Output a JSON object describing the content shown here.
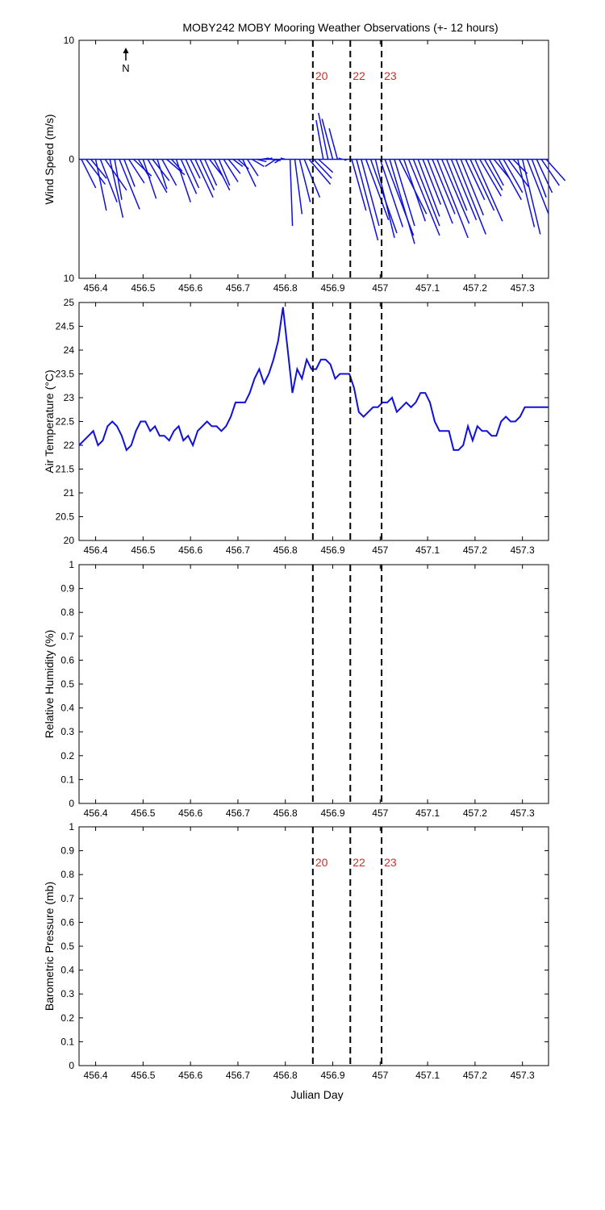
{
  "title": "MOBY242 MOBY Mooring Weather Observations (+- 12 hours)",
  "north_label": "N",
  "xlabel": "Julian Day",
  "events": [
    {
      "x": 456.858,
      "label": "20"
    },
    {
      "x": 456.937,
      "label": "22"
    },
    {
      "x": 457.003,
      "label": "23"
    }
  ],
  "chart_data": [
    {
      "type": "line",
      "name": "wind",
      "ylabel": "Wind Speed (m/s)",
      "xlim": [
        456.365,
        457.355
      ],
      "ylim": [
        -10,
        10
      ],
      "yticks": [
        10,
        0,
        10
      ],
      "yticks_values": [
        10,
        0,
        -10
      ],
      "xticks": [
        456.4,
        456.5,
        456.6,
        456.7,
        456.8,
        456.9,
        457,
        457.1,
        457.2,
        457.3
      ],
      "show_event_labels": true,
      "x": [
        456.37,
        456.38,
        456.39,
        456.4,
        456.41,
        456.42,
        456.43,
        456.44,
        456.45,
        456.46,
        456.47,
        456.48,
        456.49,
        456.5,
        456.51,
        456.52,
        456.53,
        456.54,
        456.55,
        456.56,
        456.57,
        456.58,
        456.59,
        456.6,
        456.61,
        456.62,
        456.63,
        456.64,
        456.65,
        456.66,
        456.67,
        456.68,
        456.69,
        456.7,
        456.71,
        456.72,
        456.73,
        456.74,
        456.75,
        456.76,
        456.77,
        456.78,
        456.79,
        456.8,
        456.81,
        456.82,
        456.83,
        456.84,
        456.85,
        456.86,
        456.87,
        456.88,
        456.89,
        456.9,
        456.91,
        456.92,
        456.93,
        456.94,
        456.95,
        456.96,
        456.97,
        456.98,
        456.99,
        457.0,
        457.01,
        457.02,
        457.03,
        457.04,
        457.05,
        457.06,
        457.07,
        457.08,
        457.09,
        457.1,
        457.11,
        457.12,
        457.13,
        457.14,
        457.15,
        457.16,
        457.17,
        457.18,
        457.19,
        457.2,
        457.21,
        457.22,
        457.23,
        457.24,
        457.25,
        457.26,
        457.27,
        457.28,
        457.29,
        457.3,
        457.31,
        457.32,
        457.33,
        457.34,
        457.35
      ],
      "u": [
        1.2,
        1.6,
        1.3,
        0.9,
        1.4,
        1.8,
        1.1,
        0.6,
        1.7,
        0.9,
        1.3,
        1.5,
        1.0,
        1.1,
        1.6,
        1.4,
        0.8,
        1.2,
        1.5,
        0.9,
        1.2,
        1.3,
        1.1,
        0.8,
        1.5,
        1.2,
        1.0,
        1.1,
        1.3,
        0.9,
        1.2,
        1.0,
        0.8,
        0.9,
        1.1,
        0.9,
        1.0,
        0.8,
        0.6,
        0.5,
        0.8,
        -0.9,
        -0.5,
        -0.4,
        0.2,
        0.6,
        0.9,
        1.3,
        1.8,
        1.5,
        1.2,
        -0.6,
        -0.8,
        -0.9,
        -0.7,
        -0.3,
        -0.2,
        1.2,
        1.8,
        1.5,
        1.9,
        2.2,
        1.6,
        1.9,
        2.4,
        2.1,
        1.7,
        2.3,
        1.8,
        2.6,
        2.2,
        1.8,
        1.5,
        2.1,
        1.9,
        2.6,
        2.3,
        1.7,
        2.1,
        2.5,
        1.9,
        1.6,
        2.0,
        2.3,
        1.8,
        1.5,
        1.2,
        1.3,
        1.9,
        1.6,
        1.7,
        1.2,
        1.4,
        1.5,
        1.8,
        1.2,
        1.3,
        1.5,
        1.6
      ],
      "v": [
        -2.4,
        -2.1,
        -1.6,
        -4.3,
        -3.6,
        -2.6,
        -4.9,
        -3.4,
        -4.2,
        -2.3,
        -2.0,
        -1.4,
        -1.6,
        -3.3,
        -2.8,
        -1.8,
        -2.5,
        -2.2,
        -1.3,
        -1.0,
        -3.6,
        -2.9,
        -2.4,
        -1.6,
        -3.2,
        -2.6,
        -2.2,
        -1.4,
        -2.6,
        -2.2,
        -1.9,
        -1.2,
        -0.6,
        -0.8,
        -2.3,
        -1.4,
        -0.6,
        -0.2,
        0.1,
        0.1,
        -0.1,
        -0.6,
        -0.3,
        0.1,
        -5.6,
        -4.6,
        -3.6,
        -3.2,
        -2.1,
        -1.6,
        -1.1,
        3.3,
        3.9,
        3.4,
        2.6,
        0.1,
        -0.1,
        -4.3,
        -6.8,
        -5.6,
        -5.1,
        -6.2,
        -6.6,
        -5.7,
        -6.4,
        -7.1,
        -5.6,
        -4.6,
        -5.2,
        -6.4,
        -5.6,
        -4.8,
        -3.8,
        -5.4,
        -4.6,
        -6.6,
        -5.4,
        -4.3,
        -5.1,
        -6.3,
        -4.7,
        -3.4,
        -4.3,
        -5.2,
        -3.1,
        -2.6,
        -2.2,
        -1.6,
        -3.4,
        -2.8,
        -2.3,
        -1.2,
        -5.7,
        -6.3,
        -4.6,
        -3.2,
        -2.8,
        -2.2,
        -1.8
      ]
    },
    {
      "type": "line",
      "name": "air-temperature",
      "ylabel": "Air Temperature (°C)",
      "xlim": [
        456.365,
        457.355
      ],
      "ylim": [
        20,
        25
      ],
      "yticks": [
        20,
        20.5,
        21,
        21.5,
        22,
        22.5,
        23,
        23.5,
        24,
        24.5,
        25
      ],
      "xticks": [
        456.4,
        456.5,
        456.6,
        456.7,
        456.8,
        456.9,
        457,
        457.1,
        457.2,
        457.3
      ],
      "show_event_labels": false,
      "x": [
        456.365,
        456.375,
        456.385,
        456.395,
        456.405,
        456.415,
        456.425,
        456.435,
        456.445,
        456.455,
        456.465,
        456.475,
        456.485,
        456.495,
        456.505,
        456.515,
        456.525,
        456.535,
        456.545,
        456.555,
        456.565,
        456.575,
        456.585,
        456.595,
        456.605,
        456.615,
        456.625,
        456.635,
        456.645,
        456.655,
        456.665,
        456.675,
        456.685,
        456.695,
        456.705,
        456.715,
        456.725,
        456.735,
        456.745,
        456.755,
        456.765,
        456.775,
        456.785,
        456.795,
        456.805,
        456.815,
        456.825,
        456.835,
        456.845,
        456.855,
        456.865,
        456.875,
        456.885,
        456.895,
        456.905,
        456.915,
        456.925,
        456.935,
        456.945,
        456.955,
        456.965,
        456.975,
        456.985,
        456.995,
        457.005,
        457.015,
        457.025,
        457.035,
        457.045,
        457.055,
        457.065,
        457.075,
        457.085,
        457.095,
        457.105,
        457.115,
        457.125,
        457.135,
        457.145,
        457.155,
        457.165,
        457.175,
        457.185,
        457.195,
        457.205,
        457.215,
        457.225,
        457.235,
        457.245,
        457.255,
        457.265,
        457.275,
        457.285,
        457.295,
        457.305,
        457.315,
        457.325,
        457.335,
        457.345,
        457.355
      ],
      "y": [
        22.0,
        22.1,
        22.2,
        22.3,
        22.0,
        22.1,
        22.4,
        22.5,
        22.4,
        22.2,
        21.9,
        22.0,
        22.3,
        22.5,
        22.5,
        22.3,
        22.4,
        22.2,
        22.2,
        22.1,
        22.3,
        22.4,
        22.1,
        22.2,
        22.0,
        22.3,
        22.4,
        22.5,
        22.4,
        22.4,
        22.3,
        22.4,
        22.6,
        22.9,
        22.9,
        22.9,
        23.1,
        23.4,
        23.6,
        23.3,
        23.5,
        23.8,
        24.2,
        24.9,
        24.0,
        23.1,
        23.6,
        23.4,
        23.8,
        23.6,
        23.6,
        23.8,
        23.8,
        23.7,
        23.4,
        23.5,
        23.5,
        23.5,
        23.2,
        22.7,
        22.6,
        22.7,
        22.8,
        22.8,
        22.9,
        22.9,
        23.0,
        22.7,
        22.8,
        22.9,
        22.8,
        22.9,
        23.1,
        23.1,
        22.9,
        22.5,
        22.3,
        22.3,
        22.3,
        21.9,
        21.9,
        22.0,
        22.4,
        22.1,
        22.4,
        22.3,
        22.3,
        22.2,
        22.2,
        22.5,
        22.6,
        22.5,
        22.5,
        22.6,
        22.8,
        22.8,
        22.8,
        22.8,
        22.8,
        22.8
      ]
    },
    {
      "type": "line",
      "name": "relative-humidity",
      "ylabel": "Relative Humidity (%)",
      "xlim": [
        456.365,
        457.355
      ],
      "ylim": [
        0,
        1
      ],
      "yticks": [
        0,
        0.1,
        0.2,
        0.3,
        0.4,
        0.5,
        0.6,
        0.7,
        0.8,
        0.9,
        1
      ],
      "xticks": [
        456.4,
        456.5,
        456.6,
        456.7,
        456.8,
        456.9,
        457,
        457.1,
        457.2,
        457.3
      ],
      "show_event_labels": false,
      "x": [],
      "y": []
    },
    {
      "type": "line",
      "name": "barometric-pressure",
      "ylabel": "Barometric Pressure (mb)",
      "xlim": [
        456.365,
        457.355
      ],
      "ylim": [
        0,
        1
      ],
      "yticks": [
        0,
        0.1,
        0.2,
        0.3,
        0.4,
        0.5,
        0.6,
        0.7,
        0.8,
        0.9,
        1
      ],
      "xticks": [
        456.4,
        456.5,
        456.6,
        456.7,
        456.8,
        456.9,
        457,
        457.1,
        457.2,
        457.3
      ],
      "show_event_labels": true,
      "x": [],
      "y": []
    }
  ]
}
